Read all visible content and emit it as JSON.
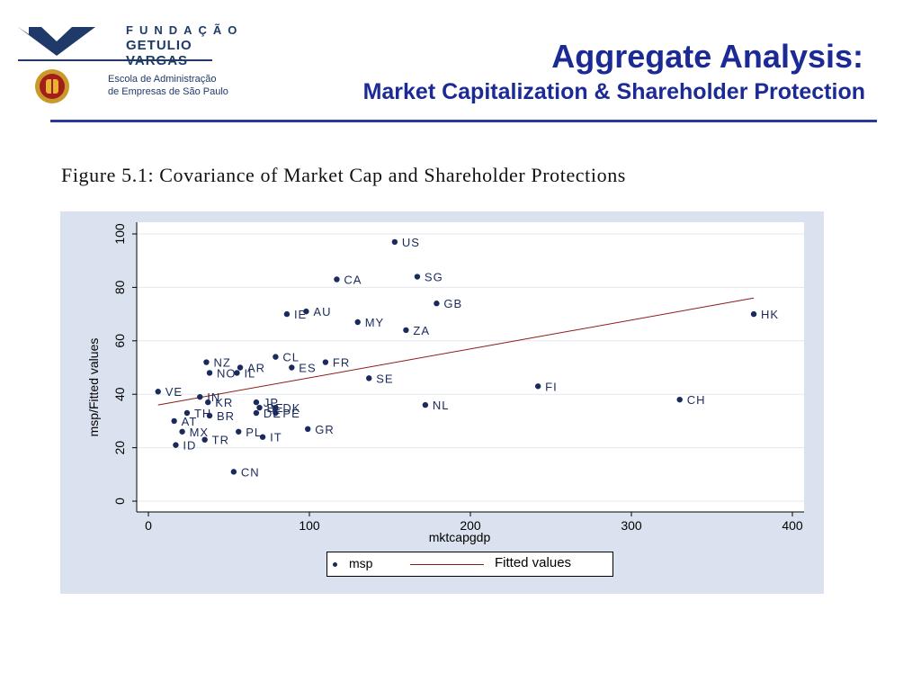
{
  "logo": {
    "line1": "FUNDAÇÃO",
    "line2": "GETULIO VARGAS",
    "school_line1": "Escola de Administração",
    "school_line2": "de Empresas de São Paulo"
  },
  "slide": {
    "title": "Aggregate Analysis:",
    "subtitle": "Market Capitalization & Shareholder Protection",
    "figure_caption": "Figure 5.1: Covariance of Market Cap and Shareholder Protections"
  },
  "colors": {
    "title": "#1b2a94",
    "panel": "#dbe2ef",
    "marker": "#1b2a5c",
    "fit_line": "#8b1a1a"
  },
  "chart_data": {
    "type": "scatter",
    "xlabel": "mktcapgdp",
    "ylabel": "msp/Fitted values",
    "xlim": [
      0,
      400
    ],
    "ylim": [
      0,
      100
    ],
    "xticks": [
      "0",
      "100",
      "200",
      "300",
      "400"
    ],
    "yticks": [
      "0",
      "20",
      "40",
      "60",
      "80",
      "100"
    ],
    "grid": "horizontal",
    "legend_position": "bottom",
    "series": [
      {
        "name": "msp",
        "marker": "dot",
        "points": [
          {
            "label": "US",
            "x": 153,
            "y": 97
          },
          {
            "label": "SG",
            "x": 167,
            "y": 84
          },
          {
            "label": "CA",
            "x": 117,
            "y": 83
          },
          {
            "label": "GB",
            "x": 179,
            "y": 74
          },
          {
            "label": "IE",
            "x": 86,
            "y": 70
          },
          {
            "label": "AU",
            "x": 98,
            "y": 71
          },
          {
            "label": "MY",
            "x": 130,
            "y": 67
          },
          {
            "label": "ZA",
            "x": 160,
            "y": 64
          },
          {
            "label": "HK",
            "x": 376,
            "y": 70
          },
          {
            "label": "CL",
            "x": 79,
            "y": 54
          },
          {
            "label": "FR",
            "x": 110,
            "y": 52
          },
          {
            "label": "NZ",
            "x": 36,
            "y": 52
          },
          {
            "label": "AR",
            "x": 57,
            "y": 50
          },
          {
            "label": "ES",
            "x": 89,
            "y": 50
          },
          {
            "label": "NO",
            "x": 38,
            "y": 48
          },
          {
            "label": "IL",
            "x": 55,
            "y": 48
          },
          {
            "label": "SE",
            "x": 137,
            "y": 46
          },
          {
            "label": "FI",
            "x": 242,
            "y": 43
          },
          {
            "label": "VE",
            "x": 6,
            "y": 41
          },
          {
            "label": "IN",
            "x": 32,
            "y": 39
          },
          {
            "label": "CH",
            "x": 330,
            "y": 38
          },
          {
            "label": "KR",
            "x": 37,
            "y": 37
          },
          {
            "label": "JP",
            "x": 67,
            "y": 37
          },
          {
            "label": "NL",
            "x": 172,
            "y": 36
          },
          {
            "label": "BE",
            "x": 69,
            "y": 35
          },
          {
            "label": "DK",
            "x": 79,
            "y": 35
          },
          {
            "label": "DE",
            "x": 67,
            "y": 33
          },
          {
            "label": "PE",
            "x": 79,
            "y": 33
          },
          {
            "label": "TH",
            "x": 24,
            "y": 33
          },
          {
            "label": "BR",
            "x": 38,
            "y": 32
          },
          {
            "label": "AT",
            "x": 16,
            "y": 30
          },
          {
            "label": "GR",
            "x": 99,
            "y": 27
          },
          {
            "label": "MX",
            "x": 21,
            "y": 26
          },
          {
            "label": "PL",
            "x": 56,
            "y": 26
          },
          {
            "label": "IT",
            "x": 71,
            "y": 24
          },
          {
            "label": "TR",
            "x": 35,
            "y": 23
          },
          {
            "label": "ID",
            "x": 17,
            "y": 21
          },
          {
            "label": "CN",
            "x": 53,
            "y": 11
          }
        ]
      },
      {
        "name": "Fitted values",
        "type": "line",
        "points": [
          {
            "x": 6,
            "y": 36
          },
          {
            "x": 376,
            "y": 76
          }
        ]
      }
    ]
  }
}
